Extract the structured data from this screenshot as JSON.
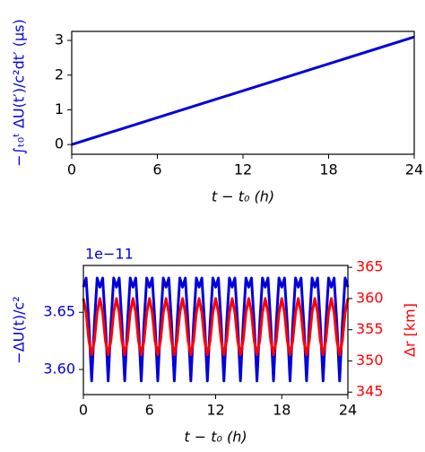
{
  "chart_data": [
    {
      "type": "line",
      "xlabel": "t − t₀ (h)",
      "ylabel": "−∫ₜ₀ᵗ ΔU(t′)/c²dt′ (μs)",
      "x": [
        0,
        24
      ],
      "series": [
        {
          "color": "#0000dd",
          "values": [
            0,
            3.1
          ]
        }
      ],
      "xlim": [
        0,
        24
      ],
      "xticks": [
        0,
        6,
        12,
        18,
        24
      ],
      "ylim": [
        -0.28,
        3.26
      ],
      "yticks": [
        0,
        1,
        2,
        3
      ]
    },
    {
      "type": "line",
      "xlabel": "t − t₀ (h)",
      "ylabel": "−ΔU(t)/c²",
      "y2label": "Δr [km]",
      "offset_text": "1e−11",
      "x": [
        0,
        0.25,
        0.5,
        0.75,
        1,
        1.25,
        1.5,
        1.75,
        2,
        2.25,
        2.5,
        2.75,
        3,
        3.25,
        3.5,
        3.75,
        4,
        4.25,
        4.5,
        4.75,
        5,
        5.25,
        5.5,
        5.75,
        6,
        6.25,
        6.5,
        6.75,
        7,
        7.25,
        7.5,
        7.75,
        8,
        8.25,
        8.5,
        8.75,
        9,
        9.25,
        9.5,
        9.75,
        10,
        10.25,
        10.5,
        10.75,
        11,
        11.25,
        11.5,
        11.75,
        12,
        12.25,
        12.5,
        12.75,
        13,
        13.25,
        13.5,
        13.75,
        14,
        14.25,
        14.5,
        14.75,
        15,
        15.25,
        15.5,
        15.75,
        16,
        16.25,
        16.5,
        16.75,
        17,
        17.25,
        17.5,
        17.75,
        18,
        18.25,
        18.5,
        18.75,
        19,
        19.25,
        19.5,
        19.75,
        20,
        20.25,
        20.5,
        20.75,
        21,
        21.25,
        21.5,
        21.75,
        22,
        22.25,
        22.5,
        22.75,
        23,
        23.25,
        23.5,
        23.75,
        24
      ],
      "series": [
        {
          "color": "#0000dd",
          "values": [
            3.672,
            3.68,
            3.64,
            3.59,
            3.64,
            3.68,
            3.672,
            3.68,
            3.64,
            3.59,
            3.64,
            3.68,
            3.672,
            3.68,
            3.64,
            3.59,
            3.64,
            3.68,
            3.672,
            3.68,
            3.64,
            3.59,
            3.64,
            3.68,
            3.672,
            3.68,
            3.64,
            3.59,
            3.64,
            3.68,
            3.672,
            3.68,
            3.64,
            3.59,
            3.64,
            3.68,
            3.672,
            3.68,
            3.64,
            3.59,
            3.64,
            3.68,
            3.672,
            3.68,
            3.64,
            3.59,
            3.64,
            3.68,
            3.672,
            3.68,
            3.64,
            3.59,
            3.64,
            3.68,
            3.672,
            3.68,
            3.64,
            3.59,
            3.64,
            3.68,
            3.672,
            3.68,
            3.64,
            3.59,
            3.64,
            3.68,
            3.672,
            3.68,
            3.64,
            3.59,
            3.64,
            3.68,
            3.672,
            3.68,
            3.64,
            3.59,
            3.64,
            3.68,
            3.672,
            3.68,
            3.64,
            3.59,
            3.64,
            3.68,
            3.672,
            3.68,
            3.64,
            3.59,
            3.64,
            3.68,
            3.672,
            3.68,
            3.64,
            3.59,
            3.64,
            3.68,
            3.672
          ]
        },
        {
          "color": "#ff0000",
          "axis": "y2",
          "values": [
            360,
            357.75,
            353.25,
            351,
            353.25,
            357.75,
            360,
            357.75,
            353.25,
            351,
            353.25,
            357.75,
            360,
            357.75,
            353.25,
            351,
            353.25,
            357.75,
            360,
            357.75,
            353.25,
            351,
            353.25,
            357.75,
            360,
            357.75,
            353.25,
            351,
            353.25,
            357.75,
            360,
            357.75,
            353.25,
            351,
            353.25,
            357.75,
            360,
            357.75,
            353.25,
            351,
            353.25,
            357.75,
            360,
            357.75,
            353.25,
            351,
            353.25,
            357.75,
            360,
            357.75,
            353.25,
            351,
            353.25,
            357.75,
            360,
            357.75,
            353.25,
            351,
            353.25,
            357.75,
            360,
            357.75,
            353.25,
            351,
            353.25,
            357.75,
            360,
            357.75,
            353.25,
            351,
            353.25,
            357.75,
            360,
            357.75,
            353.25,
            351,
            353.25,
            357.75,
            360,
            357.75,
            353.25,
            351,
            353.25,
            357.75,
            360,
            357.75,
            353.25,
            351,
            353.25,
            357.75,
            360,
            357.75,
            353.25,
            351,
            353.25,
            357.75,
            360
          ]
        }
      ],
      "xlim": [
        0,
        24
      ],
      "xticks": [
        0,
        6,
        12,
        18,
        24
      ],
      "ylim": [
        3.578,
        3.691
      ],
      "yticks": [
        {
          "value": 3.6,
          "label": "3.60"
        },
        {
          "value": 3.65,
          "label": "3.65"
        }
      ],
      "y2lim": [
        344.6,
        365.3
      ],
      "y2ticks": [
        345,
        350,
        355,
        360,
        365
      ]
    }
  ]
}
